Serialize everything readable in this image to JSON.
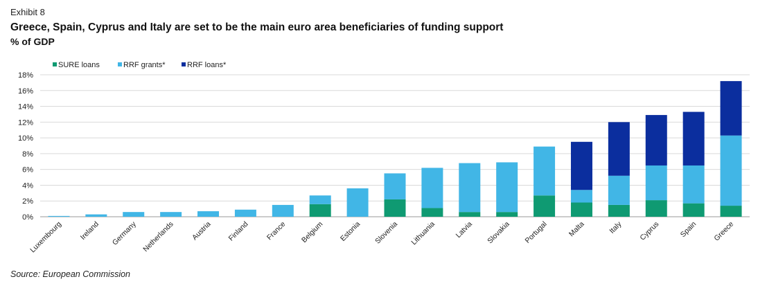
{
  "header": {
    "exhibit": "Exhibit 8",
    "title": "Greece, Spain, Cyprus and Italy are set to be the main euro area beneficiaries of funding support",
    "subtitle": "% of GDP"
  },
  "footer": {
    "source": "Source: European Commission"
  },
  "chart_data": {
    "type": "bar",
    "stacked": true,
    "categories": [
      "Luxembourg",
      "Ireland",
      "Germany",
      "Netherlands",
      "Austria",
      "Finland",
      "France",
      "Belgium",
      "Estonia",
      "Slovenia",
      "Lithuania",
      "Latvia",
      "Slovakia",
      "Portugal",
      "Malta",
      "Italy",
      "Cyprus",
      "Spain",
      "Greece"
    ],
    "series": [
      {
        "name": "SURE loans",
        "color": "#0f9a72",
        "values": [
          0,
          0,
          0,
          0,
          0,
          0,
          0,
          1.6,
          0,
          2.2,
          1.1,
          0.6,
          0.6,
          2.7,
          1.8,
          1.5,
          2.1,
          1.7,
          1.4
        ]
      },
      {
        "name": "RRF grants*",
        "color": "#41b6e6",
        "values": [
          0.1,
          0.3,
          0.6,
          0.6,
          0.7,
          0.9,
          1.5,
          1.1,
          3.6,
          3.3,
          5.1,
          6.2,
          6.3,
          6.2,
          1.6,
          3.7,
          4.4,
          4.8,
          8.9
        ]
      },
      {
        "name": "RRF loans*",
        "color": "#0b2e9e",
        "values": [
          0,
          0,
          0,
          0,
          0,
          0,
          0,
          0,
          0,
          0,
          0,
          0,
          0,
          0,
          6.1,
          6.8,
          6.4,
          6.8,
          6.9
        ]
      }
    ],
    "yticks": [
      "0%",
      "2%",
      "4%",
      "6%",
      "8%",
      "10%",
      "12%",
      "14%",
      "16%",
      "18%"
    ],
    "ylim": [
      0,
      18
    ],
    "grid": true,
    "legend_position": "top-left",
    "xlabel": "",
    "ylabel": ""
  }
}
